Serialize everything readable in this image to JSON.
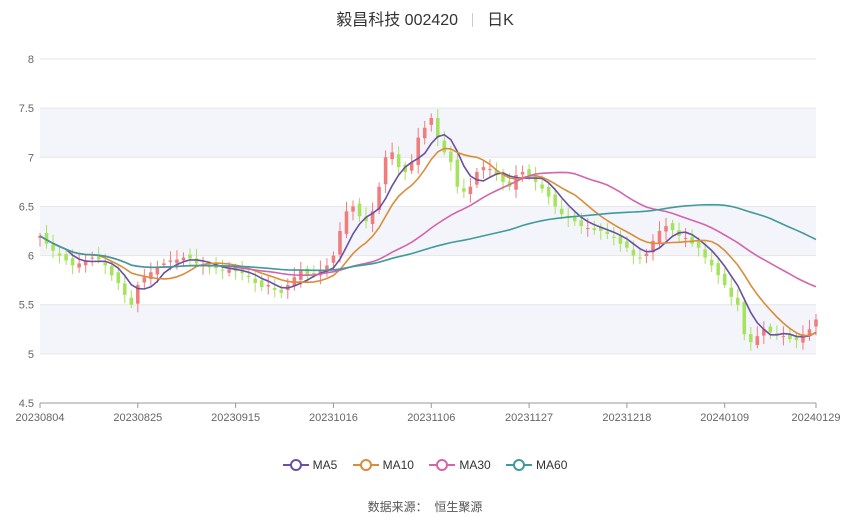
{
  "header": {
    "title": "毅昌科技 002420",
    "period": "日K"
  },
  "source": {
    "label": "数据来源：",
    "provider": "恒生聚源"
  },
  "colors": {
    "up": "#f07c7c",
    "down": "#a6e35c",
    "ma5": "#6a4fa3",
    "ma10": "#d98d3a",
    "ma30": "#d364ad",
    "ma60": "#3f9a9c",
    "band": "#f4f5fa"
  },
  "chart_data": {
    "type": "candlestick",
    "title": "毅昌科技 002420",
    "ylim": [
      4.5,
      8
    ],
    "yticks": [
      4.5,
      5,
      5.5,
      6,
      6.5,
      7,
      7.5,
      8
    ],
    "xticks": [
      {
        "i": 0,
        "label": "20230804"
      },
      {
        "i": 15,
        "label": "20230825"
      },
      {
        "i": 30,
        "label": "20230915"
      },
      {
        "i": 45,
        "label": "20231016"
      },
      {
        "i": 60,
        "label": "20231106"
      },
      {
        "i": 75,
        "label": "20231127"
      },
      {
        "i": 90,
        "label": "20231218"
      },
      {
        "i": 105,
        "label": "20240109"
      },
      {
        "i": 119,
        "label": "20240129"
      }
    ],
    "legend": [
      "MA5",
      "MA10",
      "MA30",
      "MA60"
    ],
    "closes": [
      6.2,
      6.12,
      6.05,
      6.0,
      5.95,
      5.9,
      5.92,
      5.95,
      5.98,
      5.96,
      5.9,
      5.8,
      5.72,
      5.6,
      5.5,
      5.7,
      5.78,
      5.83,
      5.88,
      5.92,
      5.95,
      5.96,
      5.98,
      5.97,
      5.92,
      5.9,
      5.88,
      5.87,
      5.85,
      5.86,
      5.84,
      5.82,
      5.78,
      5.72,
      5.68,
      5.7,
      5.65,
      5.62,
      5.7,
      5.78,
      5.85,
      5.8,
      5.82,
      5.85,
      5.9,
      6.0,
      6.25,
      6.45,
      6.5,
      6.4,
      6.35,
      6.45,
      6.7,
      7.0,
      7.05,
      6.9,
      6.85,
      6.95,
      7.2,
      7.3,
      7.4,
      7.2,
      7.05,
      6.95,
      6.7,
      6.65,
      6.7,
      6.85,
      6.9,
      6.88,
      6.82,
      6.75,
      6.7,
      6.82,
      6.85,
      6.82,
      6.75,
      6.68,
      6.6,
      6.5,
      6.42,
      6.38,
      6.35,
      6.3,
      6.28,
      6.26,
      6.25,
      6.22,
      6.18,
      6.12,
      6.08,
      6.0,
      5.97,
      6.02,
      6.15,
      6.25,
      6.3,
      6.26,
      6.2,
      6.18,
      6.12,
      6.08,
      5.98,
      5.9,
      5.8,
      5.7,
      5.58,
      5.5,
      5.2,
      5.12,
      5.18,
      5.25,
      5.22,
      5.2,
      5.18,
      5.15,
      5.14,
      5.2,
      5.25,
      5.35
    ],
    "series": [
      {
        "name": "MA5"
      },
      {
        "name": "MA10"
      },
      {
        "name": "MA30"
      },
      {
        "name": "MA60"
      }
    ]
  }
}
